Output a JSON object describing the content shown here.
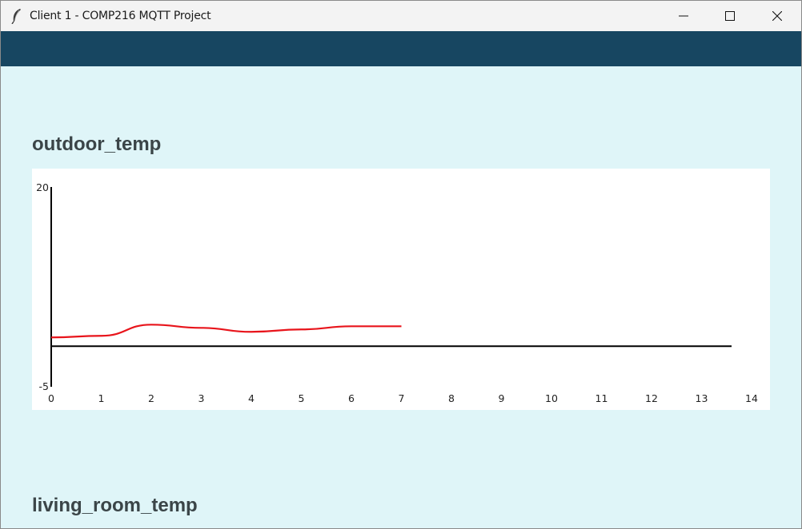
{
  "window": {
    "title": "Client 1 - COMP216 MQTT Project",
    "icons": {
      "app": "feather-icon",
      "minimize": "minimize-icon",
      "maximize": "maximize-icon",
      "close": "close-icon"
    }
  },
  "colors": {
    "navbar": "#174661",
    "background": "#dff5f8",
    "line": "#e8141b",
    "axis": "#000000"
  },
  "sections": [
    {
      "title": "outdoor_temp"
    },
    {
      "title": "living_room_temp"
    }
  ],
  "chart_data": {
    "type": "line",
    "title": "",
    "xlabel": "",
    "ylabel": "",
    "xlim": [
      0,
      14
    ],
    "ylim": [
      -5,
      20
    ],
    "x_ticks": [
      "0",
      "1",
      "2",
      "3",
      "4",
      "5",
      "6",
      "7",
      "8",
      "9",
      "10",
      "11",
      "12",
      "13",
      "14"
    ],
    "y_ticks": [
      "20",
      "-5"
    ],
    "baseline": 0,
    "grid": false,
    "series": [
      {
        "x": [
          0,
          1,
          2,
          3,
          4,
          5,
          6,
          7
        ],
        "y": [
          1.1,
          1.3,
          2.7,
          2.3,
          1.8,
          2.1,
          2.5,
          2.5
        ]
      }
    ]
  }
}
